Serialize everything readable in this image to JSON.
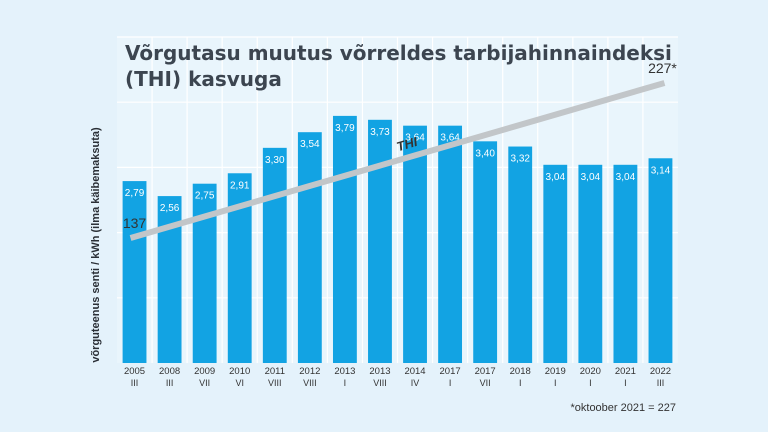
{
  "chart_data": {
    "type": "bar",
    "title_lines": [
      "Võrgutasu muutus võrreldes tarbijahinnaindeksi",
      "(THI) kasvuga"
    ],
    "ylabel": "võrguteenus senti / kWh (ilma käibemaksuta)",
    "categories": [
      "2005",
      "2008",
      "2009",
      "2010",
      "2011",
      "2012",
      "2013",
      "2013",
      "2014",
      "2017",
      "2017",
      "2018",
      "2019",
      "2020",
      "2021",
      "2022"
    ],
    "periods": [
      "III",
      "III",
      "VII",
      "VI",
      "VIII",
      "VIII",
      "I",
      "VIII",
      "IV",
      "I",
      "VII",
      "I",
      "I",
      "I",
      "I",
      "III"
    ],
    "values": [
      2.79,
      2.56,
      2.75,
      2.91,
      3.3,
      3.54,
      3.79,
      3.73,
      3.64,
      3.64,
      3.4,
      3.32,
      3.04,
      3.04,
      3.04,
      3.14
    ],
    "value_labels": [
      "2,79",
      "2,56",
      "2,75",
      "2,91",
      "3,30",
      "3,54",
      "3,79",
      "3,73",
      "3,64",
      "3,64",
      "3,40",
      "3,32",
      "3,04",
      "3,04",
      "3,04",
      "3,14"
    ],
    "ylim": [
      0,
      5
    ],
    "grid": true,
    "bar_color": "#12a3e3",
    "thi": {
      "label": "THI",
      "start_label": "137",
      "end_label": "227*",
      "start_value": 137,
      "end_value": 227,
      "color": "#c2c6c9"
    },
    "footnote": "*oktoober 2021 = 227"
  }
}
